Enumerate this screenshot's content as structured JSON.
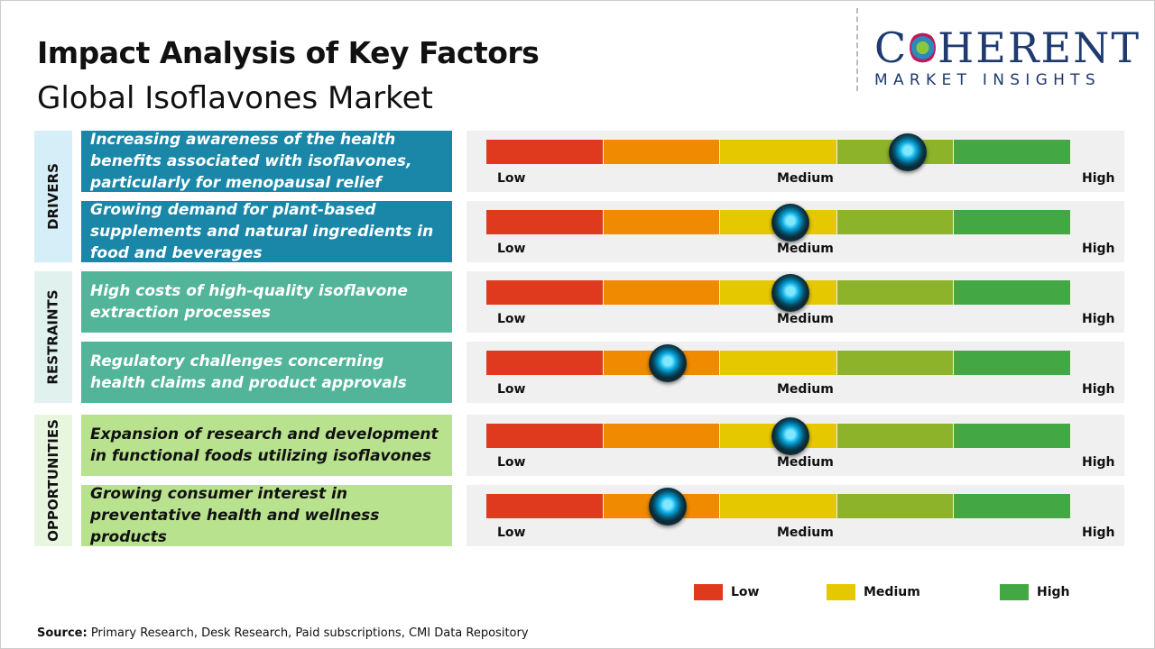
{
  "header": {
    "title": "Impact Analysis of Key Factors",
    "subtitle": "Global Isoflavones Market"
  },
  "logo": {
    "line1_a": "C",
    "line1_b": "HERENT",
    "line2": "MARKET INSIGHTS"
  },
  "chart_data": {
    "type": "gauge",
    "scale": [
      "Low",
      "Medium",
      "High"
    ],
    "segment_colors": [
      "#e03a1e",
      "#f08a00",
      "#e6c800",
      "#8db32a",
      "#43a843"
    ],
    "categories": [
      {
        "name": "DRIVERS",
        "label_bg": "#d6eef7",
        "box_color": "#1a86a8",
        "text_color": "#ffffff"
      },
      {
        "name": "RESTRAINTS",
        "label_bg": "#e0f1ee",
        "box_color": "#52b59a",
        "text_color": "#ffffff"
      },
      {
        "name": "OPPORTUNITIES",
        "label_bg": "#e9f6df",
        "box_color": "#b8e28e",
        "text_color": "#111111"
      }
    ],
    "factors": [
      {
        "category": 0,
        "text": "Increasing awareness of the health benefits associated with isoflavones, particularly for menopausal relief",
        "impact_pct": 72
      },
      {
        "category": 0,
        "text": "Growing demand for plant-based supplements and natural ingredients in food and beverages",
        "impact_pct": 52
      },
      {
        "category": 1,
        "text": "High costs of high-quality isoflavone extraction processes",
        "impact_pct": 52
      },
      {
        "category": 1,
        "text": "Regulatory challenges concerning health claims and product approvals",
        "impact_pct": 31
      },
      {
        "category": 2,
        "text": "Expansion of research and development in functional foods utilizing isoflavones",
        "impact_pct": 52
      },
      {
        "category": 2,
        "text": "Growing consumer interest in preventative health and wellness products",
        "impact_pct": 31
      }
    ],
    "legend": [
      {
        "label": "Low",
        "color": "#e03a1e"
      },
      {
        "label": "Medium",
        "color": "#e6c800"
      },
      {
        "label": "High",
        "color": "#43a843"
      }
    ]
  },
  "source": {
    "label": "Source:",
    "text": " Primary Research, Desk Research, Paid subscriptions, CMI Data Repository"
  }
}
